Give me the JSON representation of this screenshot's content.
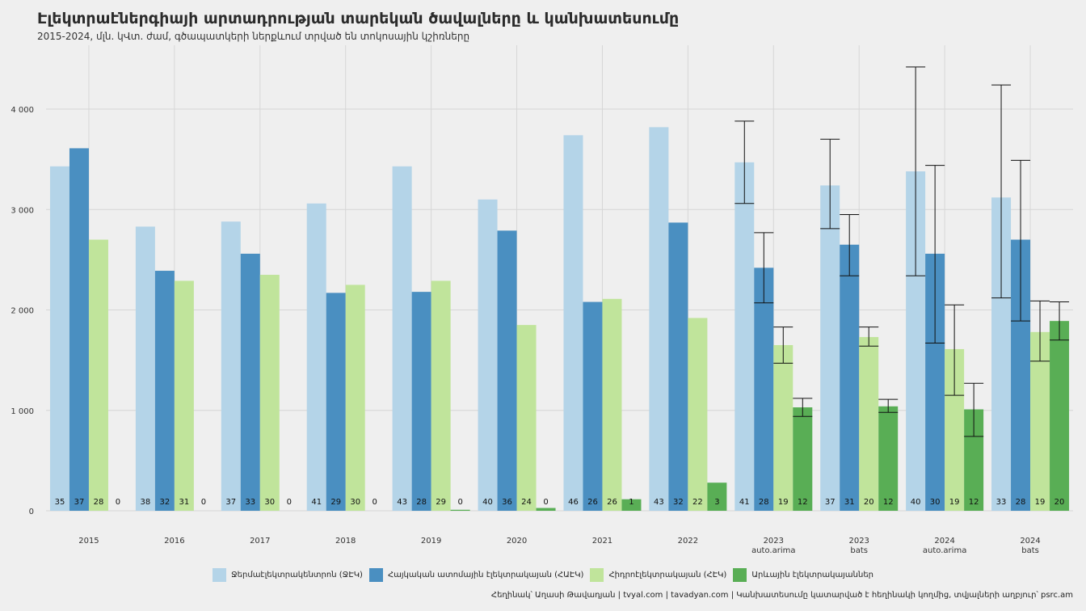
{
  "title": "Էլեկտրաէներգիայի արտադրության տարեկան ծավալները և կանխատեսումը",
  "subtitle": "2015-2024, մլն. կՎտ. ժամ, գծապատկերի ներքևում տրված են տոկոսային կշիռները",
  "caption": "Հեղինակ՝ Աղասի Թավադյան   |   tvyal.com   |   tavadyan.com   |   Կանխատեսումը կատարված է հեղինակի կողմից, տվյալների աղբյուր՝ psrc.am",
  "colors": {
    "background": "#efefef",
    "grid": "#d6d6d6",
    "series": [
      "#b4d4e8",
      "#4a8fc1",
      "#c0e49b",
      "#59ae55"
    ]
  },
  "chart_data": {
    "type": "bar",
    "categories": [
      {
        "label": "2015",
        "sub": ""
      },
      {
        "label": "2016",
        "sub": ""
      },
      {
        "label": "2017",
        "sub": ""
      },
      {
        "label": "2018",
        "sub": ""
      },
      {
        "label": "2019",
        "sub": ""
      },
      {
        "label": "2020",
        "sub": ""
      },
      {
        "label": "2021",
        "sub": ""
      },
      {
        "label": "2022",
        "sub": ""
      },
      {
        "label": "2023",
        "sub": "auto.arima"
      },
      {
        "label": "2023",
        "sub": "bats"
      },
      {
        "label": "2024",
        "sub": "auto.arima"
      },
      {
        "label": "2024",
        "sub": "bats"
      }
    ],
    "series": [
      {
        "name": "Ջերմաէլեկտրակենտրոն (ՋԷԿ)",
        "values": [
          3430,
          2830,
          2880,
          3060,
          3430,
          3100,
          3740,
          3820,
          3470,
          3240,
          3380,
          3120
        ],
        "shares": [
          "35",
          "38",
          "37",
          "41",
          "43",
          "40",
          "46",
          "43",
          "41",
          "37",
          "40",
          "33"
        ],
        "errors": [
          null,
          null,
          null,
          null,
          null,
          null,
          null,
          null,
          [
            3060,
            3880
          ],
          [
            2810,
            3700
          ],
          [
            2340,
            4420
          ],
          [
            2120,
            4240
          ]
        ]
      },
      {
        "name": "Հայկական ատոմային էլեկտրակայան (ՀԱԷԿ)",
        "values": [
          3610,
          2390,
          2560,
          2170,
          2180,
          2790,
          2080,
          2870,
          2420,
          2650,
          2560,
          2700
        ],
        "shares": [
          "37",
          "32",
          "33",
          "29",
          "28",
          "36",
          "26",
          "32",
          "28",
          "31",
          "30",
          "28"
        ],
        "errors": [
          null,
          null,
          null,
          null,
          null,
          null,
          null,
          null,
          [
            2070,
            2770
          ],
          [
            2340,
            2950
          ],
          [
            1670,
            3440
          ],
          [
            1890,
            3490
          ]
        ]
      },
      {
        "name": "Հիդրոէլեկտրակայան (ՀԷԿ)",
        "values": [
          2700,
          2290,
          2350,
          2250,
          2290,
          1850,
          2110,
          1920,
          1650,
          1730,
          1610,
          1780
        ],
        "shares": [
          "28",
          "31",
          "30",
          "30",
          "29",
          "24",
          "26",
          "22",
          "19",
          "20",
          "19",
          "19"
        ],
        "errors": [
          null,
          null,
          null,
          null,
          null,
          null,
          null,
          null,
          [
            1470,
            1830
          ],
          [
            1640,
            1830
          ],
          [
            1150,
            2050
          ],
          [
            1490,
            2090
          ]
        ]
      },
      {
        "name": "Արևային էլեկտրակայաններ",
        "values": [
          0,
          0,
          0,
          0,
          10,
          28,
          115,
          280,
          1030,
          1040,
          1010,
          1890
        ],
        "shares": [
          "0",
          "0",
          "0",
          "0",
          "0",
          "0",
          "1",
          "3",
          "12",
          "12",
          "12",
          "20"
        ],
        "errors": [
          null,
          null,
          null,
          null,
          null,
          null,
          null,
          null,
          [
            940,
            1120
          ],
          [
            980,
            1110
          ],
          [
            740,
            1270
          ],
          [
            1700,
            2080
          ]
        ]
      }
    ],
    "yticks": [
      "0",
      "1 000",
      "2 000",
      "3 000",
      "4 000"
    ],
    "ytick_values": [
      0,
      1000,
      2000,
      3000,
      4000
    ],
    "ylim": [
      0,
      4500
    ],
    "grid": true,
    "legend_position": "bottom"
  }
}
